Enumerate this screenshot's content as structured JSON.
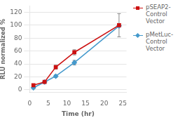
{
  "chart_data": {
    "type": "line",
    "xlabel": "Time (hr)",
    "ylabel": "RLU normalized %",
    "x": [
      1,
      4,
      7,
      12,
      24
    ],
    "series": [
      {
        "name": "pSEAP2-\nControl\nVector",
        "color": "#cc1111",
        "marker": "square",
        "values": [
          7,
          12,
          35,
          58,
          100
        ],
        "yerr": [
          1.5,
          2,
          3,
          4,
          18
        ]
      },
      {
        "name": "pMetLuc-\nControl\nVector",
        "color": "#4499cc",
        "marker": "diamond",
        "values": [
          3,
          12,
          21,
          42,
          99
        ],
        "yerr": [
          0.8,
          1.5,
          2,
          3.5,
          2
        ]
      }
    ],
    "xlim": [
      0,
      26
    ],
    "ylim": [
      -4,
      130
    ],
    "xticks": [
      0,
      5,
      10,
      15,
      20,
      25
    ],
    "yticks": [
      0,
      20,
      40,
      60,
      80,
      100,
      120
    ],
    "grid": "y",
    "legend": "right"
  }
}
